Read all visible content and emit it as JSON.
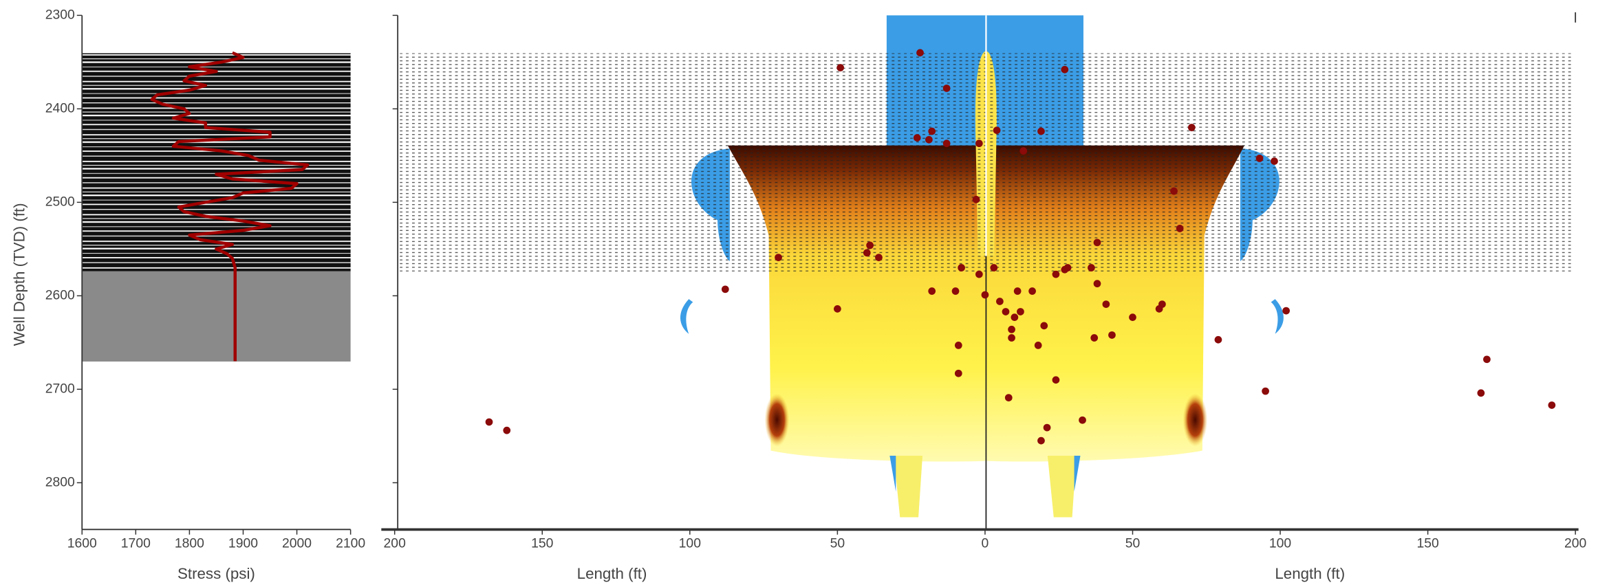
{
  "chart_data": [
    {
      "type": "line",
      "xlabel": "Stress (psi)",
      "ylabel": "Well Depth (TVD) (ft)",
      "xlim": [
        1600,
        2100
      ],
      "xticks": [
        1600,
        1700,
        1800,
        1900,
        2000,
        2100
      ],
      "ylim": [
        2300,
        2850
      ],
      "yticks": [
        2300,
        2400,
        2500,
        2600,
        2700,
        2800
      ],
      "y_inverted": true,
      "series": [
        {
          "color": "#a00000",
          "x": [
            1880,
            1900,
            1860,
            1800,
            1850,
            1800,
            1790,
            1830,
            1800,
            1740,
            1730,
            1750,
            1790,
            1800,
            1770,
            1830,
            1830,
            1950,
            1950,
            1780,
            1770,
            1860,
            1910,
            1930,
            2020,
            2010,
            1850,
            1880,
            2000,
            1990,
            1900,
            1880,
            1830,
            1780,
            1790,
            1830,
            1900,
            1950,
            1900,
            1800,
            1820,
            1880,
            1850,
            1870,
            1880,
            1885,
            1885,
            1885
          ],
          "values": [
            2340,
            2345,
            2350,
            2355,
            2360,
            2365,
            2370,
            2375,
            2380,
            2385,
            2390,
            2395,
            2400,
            2405,
            2410,
            2415,
            2420,
            2425,
            2430,
            2435,
            2440,
            2445,
            2450,
            2455,
            2460,
            2465,
            2470,
            2475,
            2480,
            2485,
            2490,
            2495,
            2500,
            2505,
            2510,
            2515,
            2520,
            2525,
            2530,
            2535,
            2540,
            2545,
            2550,
            2555,
            2560,
            2570,
            2600,
            2670
          ]
        }
      ]
    },
    {
      "type": "scatter",
      "xlabel": "Length (ft)",
      "xlim": [
        -200,
        200
      ],
      "xticks": [
        {
          "value": -200,
          "label": "200"
        },
        {
          "value": -150,
          "label": "150"
        },
        {
          "value": -100,
          "label": "100"
        },
        {
          "value": -50,
          "label": "50"
        },
        0,
        50,
        100,
        150,
        200
      ],
      "ylim": [
        2300,
        2850
      ],
      "y_inverted": true,
      "series": [
        {
          "color": "#8b0a0a",
          "x": [
            -49,
            -22,
            -13,
            27,
            -18,
            -23,
            -19,
            4,
            19,
            13,
            -13,
            -2,
            70,
            93,
            98,
            64,
            -3,
            66,
            -39,
            -40,
            -36,
            -70,
            38,
            -8,
            -2,
            3,
            27,
            28,
            24,
            36,
            38,
            -10,
            -18,
            11,
            16,
            -88,
            0,
            5,
            41,
            60,
            59,
            -50,
            7,
            10,
            12,
            102,
            50,
            20,
            9,
            9,
            37,
            43,
            -9,
            18,
            79,
            -9,
            24,
            170,
            95,
            168,
            192,
            8,
            -168,
            -162,
            33,
            21,
            19
          ],
          "values": [
            2356,
            2340,
            2378,
            2358,
            2424,
            2431,
            2433,
            2423,
            2424,
            2445,
            2437,
            2437,
            2420,
            2453,
            2456,
            2488,
            2497,
            2528,
            2546,
            2554,
            2559,
            2559,
            2543,
            2570,
            2577,
            2570,
            2572,
            2570,
            2577,
            2570,
            2587,
            2595,
            2595,
            2595,
            2595,
            2593,
            2599,
            2606,
            2609,
            2609,
            2614,
            2614,
            2617,
            2623,
            2617,
            2616,
            2623,
            2632,
            2636,
            2645,
            2645,
            2642,
            2653,
            2653,
            2647,
            2683,
            2690,
            2668,
            2702,
            2704,
            2717,
            2709,
            2735,
            2744,
            2733,
            2741,
            2755
          ]
        }
      ]
    }
  ]
}
